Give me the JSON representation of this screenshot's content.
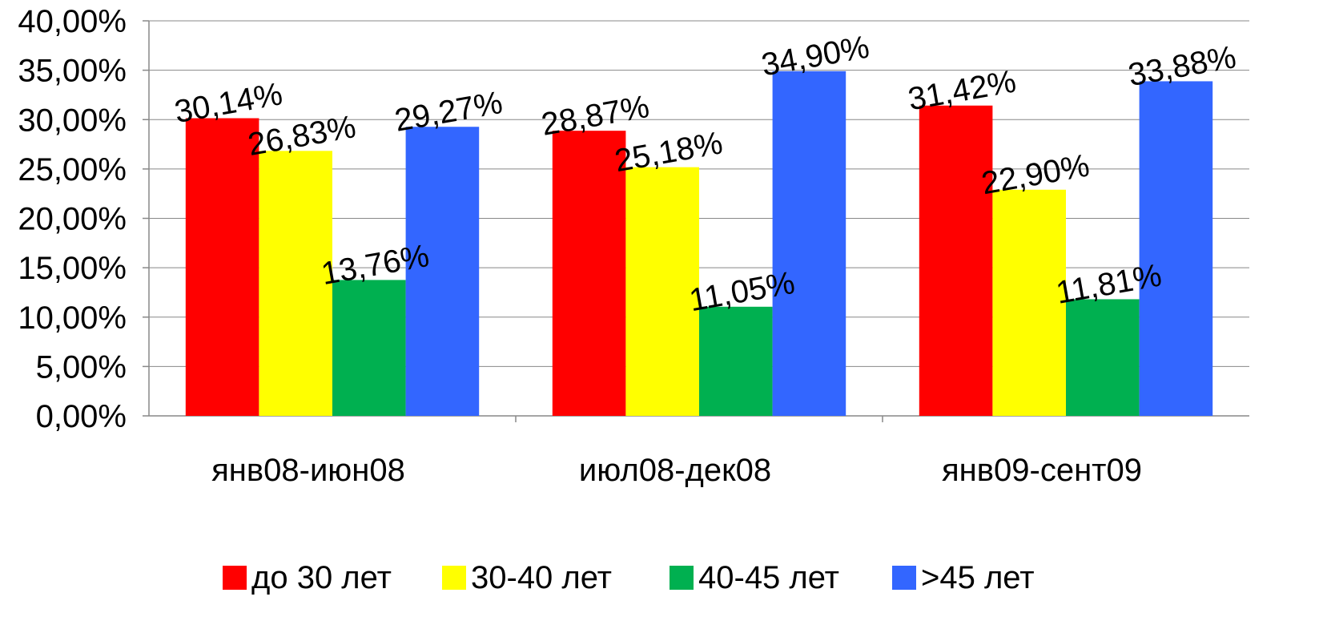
{
  "chart_data": {
    "type": "bar",
    "categories": [
      "янв08-июн08",
      "июл08-дек08",
      "янв09-сент09"
    ],
    "series": [
      {
        "name": "до 30 лет",
        "color": "#ff0000",
        "values": [
          30.14,
          28.87,
          31.42
        ],
        "labels": [
          "30,14%",
          "28,87%",
          "31,42%"
        ]
      },
      {
        "name": "30-40 лет",
        "color": "#ffff00",
        "values": [
          26.83,
          25.18,
          22.9
        ],
        "labels": [
          "26,83%",
          "25,18%",
          "22,90%"
        ]
      },
      {
        "name": "40-45 лет",
        "color": "#00b050",
        "values": [
          13.76,
          11.05,
          11.81
        ],
        "labels": [
          "13,76%",
          "11,05%",
          "11,81%"
        ]
      },
      {
        "name": ">45 лет",
        "color": "#3366ff",
        "values": [
          29.27,
          34.9,
          33.88
        ],
        "labels": [
          "29,27%",
          "34,90%",
          "33,88%"
        ]
      }
    ],
    "ylim": [
      0,
      40
    ],
    "yticks": [
      "0,00%",
      "5,00%",
      "10,00%",
      "15,00%",
      "20,00%",
      "25,00%",
      "30,00%",
      "35,00%",
      "40,00%"
    ],
    "grid": true,
    "legend_position": "bottom",
    "title": "",
    "xlabel": "",
    "ylabel": ""
  }
}
